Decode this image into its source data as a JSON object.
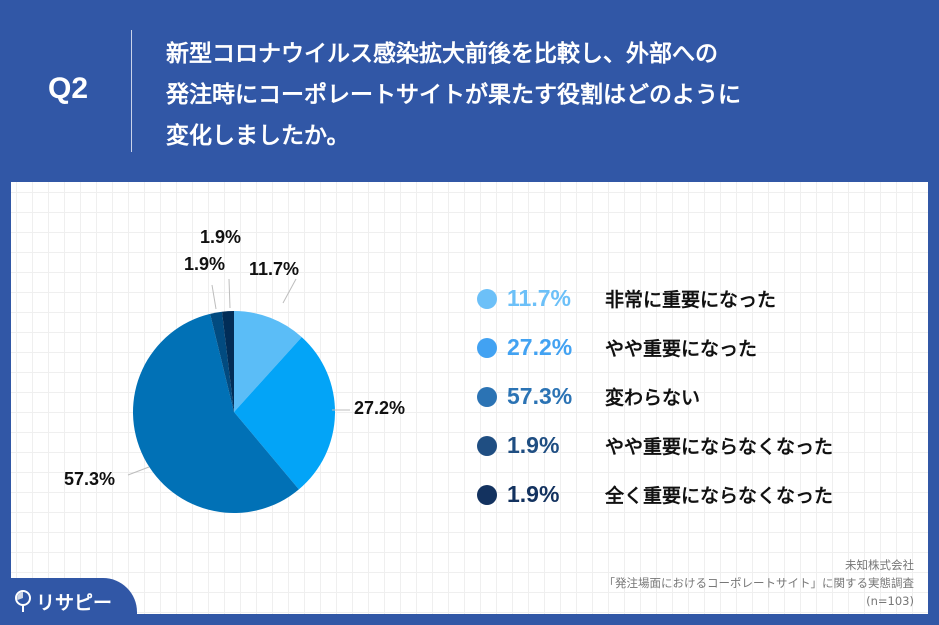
{
  "header": {
    "question_number": "Q2",
    "title_lines": [
      "新型コロナウイルス感染拡大前後を比較し、外部への",
      "発注時にコーポレートサイトが果たす役割はどのように",
      "変化しましたか。"
    ]
  },
  "colors": {
    "background": "#3157a6",
    "slice_1": "#5bbdf7",
    "slice_2": "#03a4f7",
    "slice_3": "#0171b6",
    "slice_4": "#024b80",
    "slice_5": "#022d57",
    "legend_1": "#6cc0f8",
    "legend_2": "#42a2f2",
    "legend_3": "#2b73b4",
    "legend_4": "#1f4e82",
    "legend_5": "#13325f"
  },
  "chart_data": {
    "type": "pie",
    "title": "新型コロナウイルス感染拡大前後を比較し、外部への発注時にコーポレートサイトが果たす役割はどのように変化しましたか。",
    "categories": [
      "非常に重要になった",
      "やや重要になった",
      "変わらない",
      "やや重要にならなくなった",
      "全く重要にならなくなった"
    ],
    "values": [
      11.7,
      27.2,
      57.3,
      1.9,
      1.9
    ],
    "labels": [
      "11.7%",
      "27.2%",
      "57.3%",
      "1.9%",
      "1.9%"
    ],
    "unit": "%",
    "legend_position": "right",
    "start_angle": "12 o'clock, clockwise",
    "n": 103
  },
  "legend": [
    {
      "pct": "11.7%",
      "label": "非常に重要になった"
    },
    {
      "pct": "27.2%",
      "label": "やや重要になった"
    },
    {
      "pct": "57.3%",
      "label": "変わらない"
    },
    {
      "pct": "1.9%",
      "label": "やや重要にならなくなった"
    },
    {
      "pct": "1.9%",
      "label": "全く重要にならなくなった"
    }
  ],
  "pie_labels": {
    "slice_1": "11.7%",
    "slice_2": "27.2%",
    "slice_3": "57.3%",
    "slice_4": "1.9%",
    "slice_5": "1.9%"
  },
  "source": {
    "company": "未知株式会社",
    "survey": "「発注場面におけるコーポレートサイト」に関する実態調査",
    "sample": "(n=103)"
  },
  "logo": {
    "text": "リサピー"
  }
}
